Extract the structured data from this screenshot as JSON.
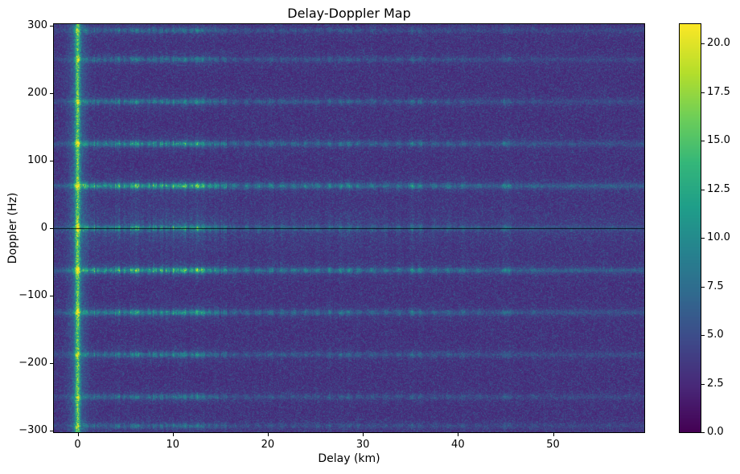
{
  "chart_data": {
    "type": "heatmap",
    "title": "Delay-Doppler Map",
    "xlabel": "Delay (km)",
    "ylabel": "Doppler (Hz)",
    "x_range": [
      -2.5,
      59.6
    ],
    "y_range": [
      -302.4,
      302.4
    ],
    "x_ticks": {
      "values": [
        0,
        10,
        20,
        30,
        40,
        50
      ],
      "labels": [
        "0",
        "10",
        "20",
        "30",
        "40",
        "50"
      ]
    },
    "y_ticks": {
      "values": [
        -300,
        -200,
        -100,
        0,
        100,
        200,
        300
      ],
      "labels": [
        "−300",
        "−200",
        "−100",
        "0",
        "100",
        "200",
        "300"
      ]
    },
    "colorbar": {
      "vmin": 0,
      "vmax": 21,
      "tick_values": [
        0,
        2.5,
        5,
        7.5,
        10,
        12.5,
        15,
        17.5,
        20
      ],
      "tick_labels": [
        "0.0",
        "2.5",
        "5.0",
        "7.5",
        "10.0",
        "12.5",
        "15.0",
        "17.5",
        "20.0"
      ]
    },
    "colormap": {
      "name": "viridis",
      "stops": [
        [
          "0.00",
          "#440154"
        ],
        [
          "0.11",
          "#482878"
        ],
        [
          "0.22",
          "#3e4989"
        ],
        [
          "0.33",
          "#31688e"
        ],
        [
          "0.44",
          "#26828e"
        ],
        [
          "0.55",
          "#1f9e89"
        ],
        [
          "0.66",
          "#35b779"
        ],
        [
          "0.77",
          "#6ece58"
        ],
        [
          "0.88",
          "#b5de2b"
        ],
        [
          "1.00",
          "#fde725"
        ]
      ]
    },
    "zero_doppler_line_hz": 0,
    "zero_delay_column": {
      "km": 0,
      "strength": 9,
      "width_km": 0.25
    },
    "noise_floor": {
      "base": 2.3,
      "spread": 3.0
    },
    "doppler_bands": [
      {
        "hz": 0,
        "strength": 5.0
      },
      {
        "hz": 62.5,
        "strength": 7.5
      },
      {
        "hz": -62.5,
        "strength": 7.5
      },
      {
        "hz": 125,
        "strength": 5.5
      },
      {
        "hz": -125,
        "strength": 5.5
      },
      {
        "hz": 187.5,
        "strength": 4.2
      },
      {
        "hz": -187.5,
        "strength": 4.2
      },
      {
        "hz": 250,
        "strength": 3.6
      },
      {
        "hz": -250,
        "strength": 3.6
      },
      {
        "hz": 293,
        "strength": 3.2
      },
      {
        "hz": -293,
        "strength": 3.2
      }
    ],
    "center_glow": {
      "hz": 0,
      "strength": 1.3,
      "width_hz": 28
    },
    "delay_streaks": [
      {
        "km": 0.9,
        "amp": 0.55
      },
      {
        "km": 1.6,
        "amp": 0.5
      },
      {
        "km": 2.2,
        "amp": 0.45
      },
      {
        "km": 2.9,
        "amp": 0.6
      },
      {
        "km": 3.6,
        "amp": 0.5
      },
      {
        "km": 4.3,
        "amp": 0.75
      },
      {
        "km": 5.0,
        "amp": 0.55
      },
      {
        "km": 5.7,
        "amp": 0.6
      },
      {
        "km": 6.2,
        "amp": 0.95
      },
      {
        "km": 6.8,
        "amp": 0.6
      },
      {
        "km": 7.5,
        "amp": 0.55
      },
      {
        "km": 8.1,
        "amp": 0.7
      },
      {
        "km": 8.8,
        "amp": 0.55
      },
      {
        "km": 9.4,
        "amp": 0.6
      },
      {
        "km": 10.1,
        "amp": 0.75
      },
      {
        "km": 10.8,
        "amp": 0.7
      },
      {
        "km": 11.3,
        "amp": 1.05
      },
      {
        "km": 12.0,
        "amp": 0.85
      },
      {
        "km": 12.6,
        "amp": 1.15
      },
      {
        "km": 13.2,
        "amp": 0.95
      },
      {
        "km": 13.9,
        "amp": 0.6
      },
      {
        "km": 14.6,
        "amp": 0.5
      },
      {
        "km": 15.4,
        "amp": 0.4
      },
      {
        "km": 16.5,
        "amp": 0.3
      },
      {
        "km": 17.8,
        "amp": 0.32
      },
      {
        "km": 19.0,
        "amp": 0.28
      },
      {
        "km": 20.3,
        "amp": 0.38
      },
      {
        "km": 21.5,
        "amp": 0.3
      },
      {
        "km": 22.8,
        "amp": 0.32
      },
      {
        "km": 24.0,
        "amp": 0.28
      },
      {
        "km": 25.2,
        "amp": 0.3
      },
      {
        "km": 26.5,
        "amp": 0.38
      },
      {
        "km": 27.7,
        "amp": 0.42
      },
      {
        "km": 28.5,
        "amp": 0.48
      },
      {
        "km": 29.6,
        "amp": 0.3
      },
      {
        "km": 31.0,
        "amp": 0.28
      },
      {
        "km": 32.4,
        "amp": 0.3
      },
      {
        "km": 33.8,
        "amp": 0.28
      },
      {
        "km": 35.2,
        "amp": 0.55
      },
      {
        "km": 36.0,
        "amp": 0.45
      },
      {
        "km": 37.5,
        "amp": 0.24
      },
      {
        "km": 39.0,
        "amp": 0.26
      },
      {
        "km": 40.5,
        "amp": 0.28
      },
      {
        "km": 42.2,
        "amp": 0.2
      },
      {
        "km": 44.9,
        "amp": 0.42
      },
      {
        "km": 45.4,
        "amp": 0.34
      },
      {
        "km": 48.0,
        "amp": 0.16
      },
      {
        "km": 52.0,
        "amp": 0.12
      },
      {
        "km": 56.0,
        "amp": 0.1
      }
    ]
  }
}
